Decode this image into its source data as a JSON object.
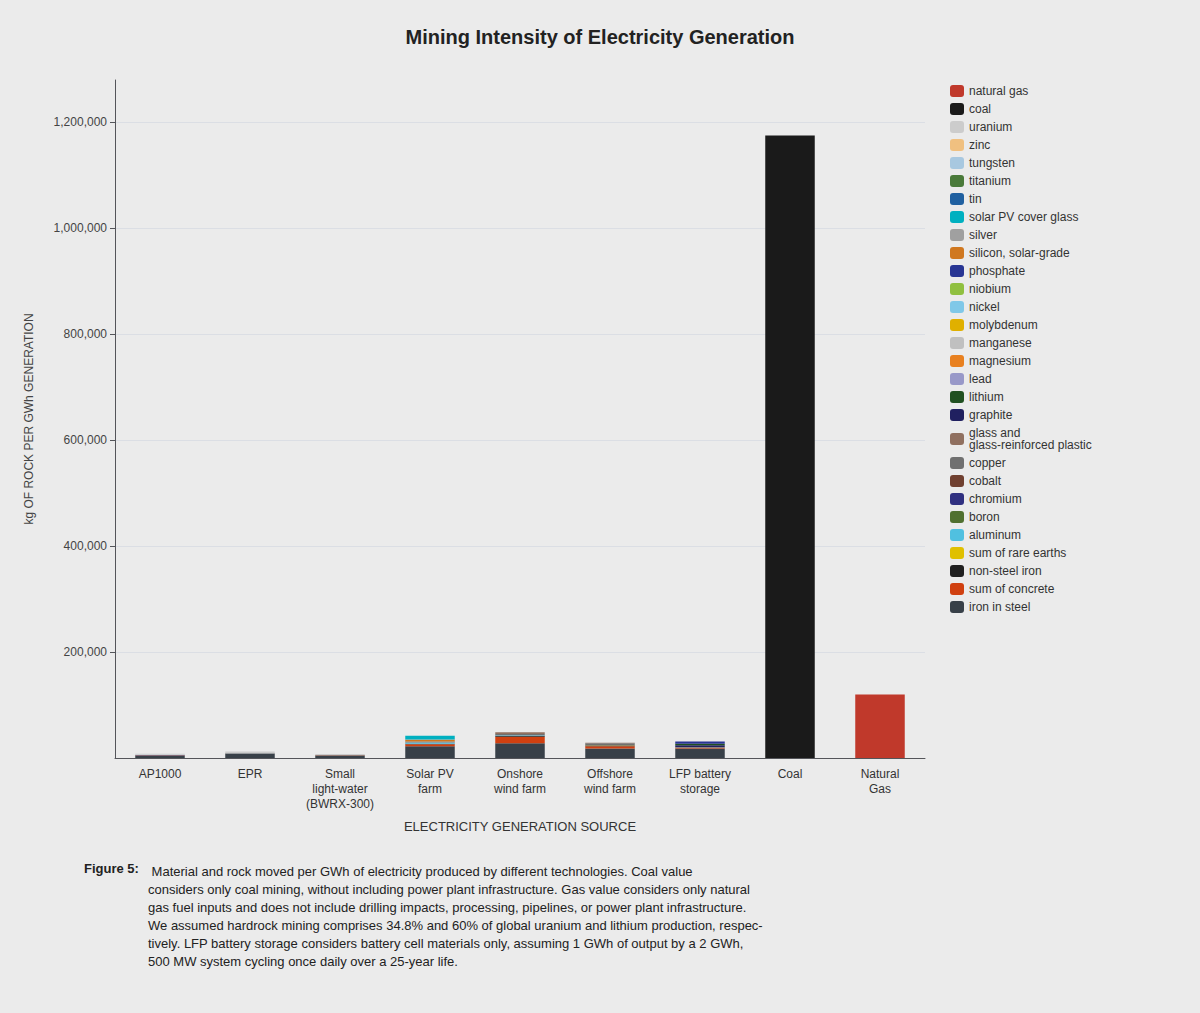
{
  "chart_data": {
    "type": "bar",
    "title": "Mining Intensity of Electricity Generation",
    "xlabel": "ELECTRICITY GENERATION SOURCE",
    "ylabel": "kg OF ROCK PER GWh GENERATION",
    "categories": [
      "AP1000",
      "EPR",
      "Small\nlight-water\n(BWRX-300)",
      "Solar PV\nfarm",
      "Onshore\nwind farm",
      "Offshore\nwind farm",
      "LFP battery\nstorage",
      "Coal",
      "Natural\nGas"
    ],
    "stacked": true,
    "ylim": [
      0,
      1280000
    ],
    "yticks": [
      {
        "value": 200000,
        "label": "200,000"
      },
      {
        "value": 400000,
        "label": "400,000"
      },
      {
        "value": 600000,
        "label": "600,000"
      },
      {
        "value": 800000,
        "label": "800,000"
      },
      {
        "value": 1000000,
        "label": "1,000,000"
      },
      {
        "value": 1200000,
        "label": "1,200,000"
      }
    ],
    "grid": true,
    "legend": "right",
    "background_color": "#ebebeb",
    "series": [
      {
        "name": "iron in steel",
        "color": "#384048",
        "values": [
          4800,
          7500,
          4500,
          22000,
          28000,
          18000,
          18000,
          0,
          0
        ]
      },
      {
        "name": "sum of concrete",
        "color": "#d04010",
        "values": [
          400,
          700,
          500,
          4000,
          12000,
          4000,
          1500,
          0,
          0
        ]
      },
      {
        "name": "non-steel iron",
        "color": "#202020",
        "values": [
          150,
          250,
          150,
          800,
          1800,
          1800,
          400,
          0,
          0
        ]
      },
      {
        "name": "sum of rare earths",
        "color": "#e0c000",
        "values": [
          0,
          0,
          0,
          80,
          150,
          80,
          0,
          0,
          0
        ]
      },
      {
        "name": "aluminum",
        "color": "#50c0e0",
        "values": [
          0,
          0,
          0,
          2500,
          800,
          400,
          0,
          0,
          0
        ]
      },
      {
        "name": "boron",
        "color": "#507030",
        "values": [
          0,
          0,
          0,
          0,
          0,
          0,
          0,
          0,
          0
        ]
      },
      {
        "name": "chromium",
        "color": "#303080",
        "values": [
          150,
          250,
          80,
          0,
          0,
          0,
          0,
          0,
          0
        ]
      },
      {
        "name": "cobalt",
        "color": "#704030",
        "values": [
          0,
          0,
          0,
          0,
          0,
          0,
          80,
          0,
          0
        ]
      },
      {
        "name": "copper",
        "color": "#707070",
        "values": [
          250,
          350,
          250,
          1800,
          2500,
          3500,
          800,
          0,
          0
        ]
      },
      {
        "name": "glass and\nglass-reinforced plastic",
        "color": "#907060",
        "values": [
          0,
          0,
          0,
          0,
          3500,
          800,
          0,
          0,
          0
        ]
      },
      {
        "name": "graphite",
        "color": "#202060",
        "values": [
          0,
          0,
          0,
          0,
          0,
          0,
          3500,
          0,
          0
        ]
      },
      {
        "name": "lithium",
        "color": "#205020",
        "values": [
          0,
          0,
          0,
          0,
          0,
          0,
          2500,
          0,
          0
        ]
      },
      {
        "name": "lead",
        "color": "#9898c8",
        "values": [
          0,
          0,
          0,
          0,
          0,
          0,
          0,
          0,
          0
        ]
      },
      {
        "name": "magnesium",
        "color": "#e88020",
        "values": [
          0,
          0,
          0,
          0,
          0,
          0,
          0,
          0,
          0
        ]
      },
      {
        "name": "manganese",
        "color": "#c0c0c0",
        "values": [
          0,
          0,
          0,
          0,
          0,
          0,
          0,
          0,
          0
        ]
      },
      {
        "name": "molybdenum",
        "color": "#e0b000",
        "values": [
          40,
          80,
          40,
          0,
          0,
          0,
          0,
          0,
          0
        ]
      },
      {
        "name": "nickel",
        "color": "#80c8e8",
        "values": [
          120,
          180,
          80,
          0,
          0,
          150,
          0,
          0,
          0
        ]
      },
      {
        "name": "niobium",
        "color": "#90c040",
        "values": [
          0,
          0,
          0,
          0,
          0,
          0,
          0,
          0,
          0
        ]
      },
      {
        "name": "phosphate",
        "color": "#283593",
        "values": [
          0,
          0,
          0,
          0,
          0,
          0,
          4500,
          0,
          0
        ]
      },
      {
        "name": "silicon, solar-grade",
        "color": "#d07820",
        "values": [
          0,
          0,
          0,
          3500,
          0,
          0,
          0,
          0,
          0
        ]
      },
      {
        "name": "silver",
        "color": "#a0a0a0",
        "values": [
          0,
          0,
          0,
          450,
          0,
          0,
          0,
          0,
          0
        ]
      },
      {
        "name": "solar PV cover glass",
        "color": "#00b0c0",
        "values": [
          0,
          0,
          0,
          7000,
          0,
          0,
          0,
          0,
          0
        ]
      },
      {
        "name": "tin",
        "color": "#2060a0",
        "values": [
          0,
          0,
          0,
          0,
          0,
          0,
          0,
          0,
          0
        ]
      },
      {
        "name": "titanium",
        "color": "#4a7a3a",
        "values": [
          0,
          0,
          0,
          0,
          0,
          0,
          0,
          0,
          0
        ]
      },
      {
        "name": "tungsten",
        "color": "#a8c8e0",
        "values": [
          0,
          0,
          0,
          0,
          0,
          0,
          0,
          0,
          0
        ]
      },
      {
        "name": "zinc",
        "color": "#f0c080",
        "values": [
          0,
          0,
          0,
          0,
          0,
          0,
          0,
          0,
          0
        ]
      },
      {
        "name": "uranium",
        "color": "#cccccc",
        "values": [
          2200,
          2800,
          1800,
          0,
          0,
          0,
          0,
          0,
          0
        ]
      },
      {
        "name": "coal",
        "color": "#1a1a1a",
        "values": [
          0,
          0,
          0,
          0,
          0,
          0,
          0,
          1175000,
          0
        ]
      },
      {
        "name": "natural gas",
        "color": "#c0392b",
        "values": [
          0,
          0,
          0,
          0,
          0,
          0,
          0,
          0,
          120000
        ]
      }
    ],
    "caption": {
      "label": "Figure 5:",
      "text": " Material and rock moved per GWh of electricity produced by different technologies. Coal value\nconsiders only coal mining, without including power plant infrastructure. Gas value considers only natural\ngas fuel inputs and does not include drilling impacts, processing, pipelines, or power plant infrastructure.\nWe assumed hardrock mining comprises 34.8% and 60% of global uranium and lithium production, respec-\ntively. LFP battery storage considers battery cell materials only, assuming 1 GWh of output by a 2 GWh,\n500 MW system cycling once daily over a 25-year life."
    }
  }
}
